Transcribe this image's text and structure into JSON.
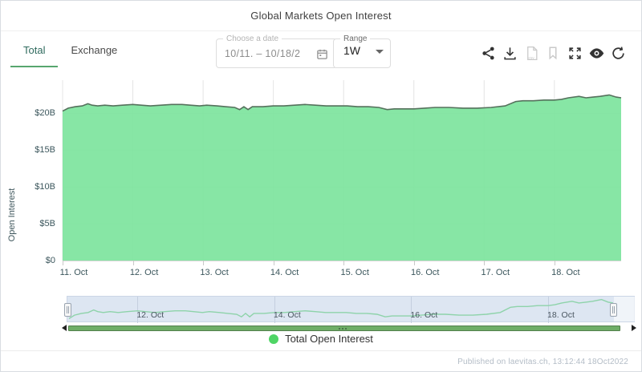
{
  "header": {
    "title": "Global Markets Open Interest"
  },
  "tabs": [
    {
      "label": "Total",
      "active": true
    },
    {
      "label": "Exchange",
      "active": false
    }
  ],
  "controls": {
    "date_picker": {
      "label": "Choose a date",
      "value": "10/11. – 10/18/2",
      "icon": "calendar-icon"
    },
    "range": {
      "label": "Range",
      "value": "1W",
      "icon": "chevron-down-icon"
    }
  },
  "toolbar": {
    "csv_label": "csv",
    "icons": [
      "share-icon",
      "download-icon",
      "csv-file-icon",
      "bookmark-icon",
      "fullscreen-icon",
      "eye-icon",
      "refresh-icon"
    ]
  },
  "chart_data": {
    "type": "area",
    "title": "Global Markets Open Interest",
    "ylabel": "Open Interest",
    "xlabel": "",
    "x_range_days": [
      0,
      7.95
    ],
    "ylim": [
      0,
      24.5
    ],
    "grid": true,
    "series": [
      {
        "name": "Total Open Interest",
        "unit": "USD billions",
        "x_days": [
          0,
          0.08,
          0.18,
          0.28,
          0.36,
          0.42,
          0.5,
          0.6,
          0.72,
          0.85,
          1.0,
          1.12,
          1.25,
          1.4,
          1.55,
          1.7,
          1.82,
          1.95,
          2.05,
          2.2,
          2.32,
          2.45,
          2.52,
          2.58,
          2.64,
          2.7,
          2.85,
          3.0,
          3.15,
          3.3,
          3.45,
          3.6,
          3.75,
          3.9,
          4.05,
          4.2,
          4.35,
          4.5,
          4.62,
          4.72,
          4.85,
          5.0,
          5.15,
          5.3,
          5.5,
          5.7,
          5.9,
          6.1,
          6.3,
          6.45,
          6.55,
          6.7,
          6.85,
          7.0,
          7.1,
          7.2,
          7.35,
          7.45,
          7.55,
          7.65,
          7.78,
          7.88,
          7.95
        ],
        "values_billions": [
          20.3,
          20.7,
          20.9,
          21.0,
          21.3,
          21.1,
          21.0,
          21.1,
          21.0,
          21.1,
          21.2,
          21.1,
          21.0,
          21.1,
          21.2,
          21.2,
          21.1,
          21.0,
          21.1,
          21.0,
          20.9,
          20.8,
          20.5,
          20.9,
          20.5,
          20.9,
          20.9,
          21.0,
          21.0,
          21.1,
          21.2,
          21.1,
          21.0,
          21.0,
          21.0,
          20.9,
          20.9,
          20.8,
          20.5,
          20.6,
          20.6,
          20.6,
          20.7,
          20.8,
          20.8,
          20.7,
          20.7,
          20.8,
          21.0,
          21.6,
          21.7,
          21.7,
          21.8,
          21.8,
          21.9,
          22.1,
          22.3,
          22.1,
          22.2,
          22.3,
          22.5,
          22.2,
          22.1
        ]
      }
    ],
    "yticks": {
      "values": [
        0,
        5,
        10,
        15,
        20
      ],
      "labels": [
        "$0",
        "$5B",
        "$10B",
        "$15B",
        "$20B"
      ]
    },
    "xticks": {
      "days": [
        0,
        1,
        2,
        3,
        4,
        5,
        6,
        7
      ],
      "labels": [
        "11. Oct",
        "12. Oct",
        "13. Oct",
        "14. Oct",
        "15. Oct",
        "16. Oct",
        "17. Oct",
        "18. Oct"
      ]
    },
    "navigator": {
      "tick_days": [
        1,
        3,
        5,
        7
      ],
      "tick_labels": [
        "12. Oct",
        "14. Oct",
        "16. Oct",
        "18. Oct"
      ]
    },
    "colors": {
      "area_fill": "#7de49d",
      "area_line": "#55715c",
      "grid_line": "#e4e4e4",
      "navigator_line": "#8ed3aa",
      "navigator_bg": "#dde6f2",
      "scrollbar": "#6fae68",
      "legend_dot": "#4fd565",
      "tab_accent": "#57a66f"
    },
    "legend_position": "bottom"
  },
  "legend": {
    "label": "Total Open Interest"
  },
  "footer": {
    "text": "Published on laevitas.ch, 13:12:44 18Oct2022"
  }
}
